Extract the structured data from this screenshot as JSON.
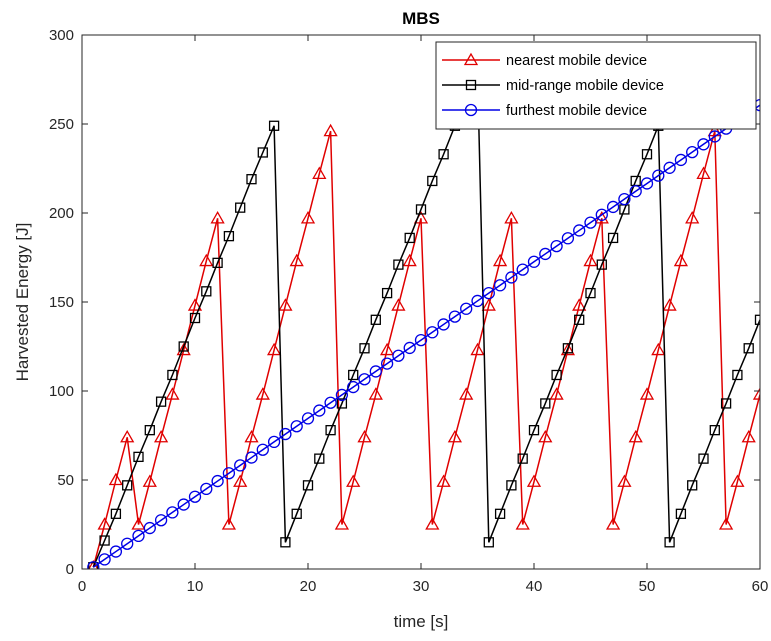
{
  "chart_data": {
    "type": "line",
    "title": "MBS",
    "xlabel": "time [s]",
    "ylabel": "Harvested Energy [J]",
    "xlim": [
      0,
      60
    ],
    "ylim": [
      0,
      300
    ],
    "xticks": [
      0,
      10,
      20,
      30,
      40,
      50,
      60
    ],
    "yticks": [
      0,
      50,
      100,
      150,
      200,
      250,
      300
    ],
    "grid": false,
    "legend_position": "top-right",
    "series": [
      {
        "name": "nearest mobile device",
        "color": "#e00000",
        "marker": "triangle",
        "points": [
          [
            1,
            1
          ],
          [
            2,
            25
          ],
          [
            3,
            50
          ],
          [
            4,
            74
          ],
          [
            5,
            25
          ],
          [
            6,
            49
          ],
          [
            7,
            74
          ],
          [
            8,
            98
          ],
          [
            9,
            123
          ],
          [
            10,
            148
          ],
          [
            11,
            173
          ],
          [
            12,
            197
          ],
          [
            13,
            25
          ],
          [
            14,
            49
          ],
          [
            15,
            74
          ],
          [
            16,
            98
          ],
          [
            17,
            123
          ],
          [
            18,
            148
          ],
          [
            19,
            173
          ],
          [
            20,
            197
          ],
          [
            21,
            222
          ],
          [
            22,
            246
          ],
          [
            23,
            25
          ],
          [
            24,
            49
          ],
          [
            25,
            74
          ],
          [
            26,
            98
          ],
          [
            27,
            123
          ],
          [
            28,
            148
          ],
          [
            29,
            173
          ],
          [
            30,
            197
          ],
          [
            31,
            25
          ],
          [
            32,
            49
          ],
          [
            33,
            74
          ],
          [
            34,
            98
          ],
          [
            35,
            123
          ],
          [
            36,
            148
          ],
          [
            37,
            173
          ],
          [
            38,
            197
          ],
          [
            39,
            25
          ],
          [
            40,
            49
          ],
          [
            41,
            74
          ],
          [
            42,
            98
          ],
          [
            43,
            123
          ],
          [
            44,
            148
          ],
          [
            45,
            173
          ],
          [
            46,
            197
          ],
          [
            47,
            25
          ],
          [
            48,
            49
          ],
          [
            49,
            74
          ],
          [
            50,
            98
          ],
          [
            51,
            123
          ],
          [
            52,
            148
          ],
          [
            53,
            173
          ],
          [
            54,
            197
          ],
          [
            55,
            222
          ],
          [
            56,
            246
          ],
          [
            57,
            25
          ],
          [
            58,
            49
          ],
          [
            59,
            74
          ],
          [
            60,
            98
          ]
        ]
      },
      {
        "name": "mid-range mobile device",
        "color": "#000000",
        "marker": "square",
        "points": [
          [
            1,
            1
          ],
          [
            2,
            16
          ],
          [
            3,
            31
          ],
          [
            4,
            47
          ],
          [
            5,
            63
          ],
          [
            6,
            78
          ],
          [
            7,
            94
          ],
          [
            8,
            109
          ],
          [
            9,
            125
          ],
          [
            10,
            141
          ],
          [
            11,
            156
          ],
          [
            12,
            172
          ],
          [
            13,
            187
          ],
          [
            14,
            203
          ],
          [
            15,
            219
          ],
          [
            16,
            234
          ],
          [
            17,
            249
          ],
          [
            18,
            15
          ],
          [
            19,
            31
          ],
          [
            20,
            47
          ],
          [
            21,
            62
          ],
          [
            22,
            78
          ],
          [
            23,
            93
          ],
          [
            24,
            109
          ],
          [
            25,
            124
          ],
          [
            26,
            140
          ],
          [
            27,
            155
          ],
          [
            28,
            171
          ],
          [
            29,
            186
          ],
          [
            30,
            202
          ],
          [
            31,
            218
          ],
          [
            32,
            233
          ],
          [
            33,
            249
          ],
          [
            34,
            264
          ],
          [
            35,
            280
          ],
          [
            36,
            15
          ],
          [
            37,
            31
          ],
          [
            38,
            47
          ],
          [
            39,
            62
          ],
          [
            40,
            78
          ],
          [
            41,
            93
          ],
          [
            42,
            109
          ],
          [
            43,
            124
          ],
          [
            44,
            140
          ],
          [
            45,
            155
          ],
          [
            46,
            171
          ],
          [
            47,
            186
          ],
          [
            48,
            202
          ],
          [
            49,
            218
          ],
          [
            50,
            233
          ],
          [
            51,
            249
          ],
          [
            52,
            15
          ],
          [
            53,
            31
          ],
          [
            54,
            47
          ],
          [
            55,
            62
          ],
          [
            56,
            78
          ],
          [
            57,
            93
          ],
          [
            58,
            109
          ],
          [
            59,
            124
          ],
          [
            60,
            140
          ]
        ]
      },
      {
        "name": "furthest mobile device",
        "color": "#0000e6",
        "marker": "circle",
        "points": [
          [
            1,
            1
          ],
          [
            2,
            5.4
          ],
          [
            3,
            9.8
          ],
          [
            4,
            14.2
          ],
          [
            5,
            18.6
          ],
          [
            6,
            23
          ],
          [
            7,
            27.4
          ],
          [
            8,
            31.8
          ],
          [
            9,
            36.2
          ],
          [
            10,
            40.6
          ],
          [
            11,
            45
          ],
          [
            12,
            49.4
          ],
          [
            13,
            53.8
          ],
          [
            14,
            58.2
          ],
          [
            15,
            62.6
          ],
          [
            16,
            67
          ],
          [
            17,
            71.4
          ],
          [
            18,
            75.8
          ],
          [
            19,
            80.2
          ],
          [
            20,
            84.6
          ],
          [
            21,
            89
          ],
          [
            22,
            93.4
          ],
          [
            23,
            97.8
          ],
          [
            24,
            102.2
          ],
          [
            25,
            106.6
          ],
          [
            26,
            111
          ],
          [
            27,
            115.4
          ],
          [
            28,
            119.8
          ],
          [
            29,
            124.2
          ],
          [
            30,
            128.6
          ],
          [
            31,
            133
          ],
          [
            32,
            137.4
          ],
          [
            33,
            141.8
          ],
          [
            34,
            146.2
          ],
          [
            35,
            150.6
          ],
          [
            36,
            155
          ],
          [
            37,
            159.4
          ],
          [
            38,
            163.8
          ],
          [
            39,
            168.2
          ],
          [
            40,
            172.6
          ],
          [
            41,
            177
          ],
          [
            42,
            181.4
          ],
          [
            43,
            185.8
          ],
          [
            44,
            190.2
          ],
          [
            45,
            194.6
          ],
          [
            46,
            199
          ],
          [
            47,
            203.4
          ],
          [
            48,
            207.8
          ],
          [
            49,
            212.2
          ],
          [
            50,
            216.6
          ],
          [
            51,
            221
          ],
          [
            52,
            225.4
          ],
          [
            53,
            229.8
          ],
          [
            54,
            234.2
          ],
          [
            55,
            238.6
          ],
          [
            56,
            243
          ],
          [
            57,
            247.4
          ],
          [
            58,
            251.8
          ],
          [
            59,
            256.2
          ],
          [
            60,
            260.6
          ]
        ]
      }
    ]
  }
}
